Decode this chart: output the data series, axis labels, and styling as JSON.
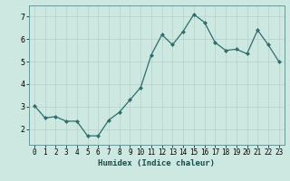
{
  "x": [
    0,
    1,
    2,
    3,
    4,
    5,
    6,
    7,
    8,
    9,
    10,
    11,
    12,
    13,
    14,
    15,
    16,
    17,
    18,
    19,
    20,
    21,
    22,
    23
  ],
  "y": [
    3.05,
    2.5,
    2.55,
    2.35,
    2.35,
    1.7,
    1.7,
    2.4,
    2.75,
    3.3,
    3.85,
    5.3,
    6.2,
    5.75,
    6.35,
    7.1,
    6.75,
    5.85,
    5.5,
    5.55,
    5.35,
    6.4,
    5.75,
    5.0
  ],
  "line_color": "#2e6e6e",
  "marker": "D",
  "marker_size": 2.0,
  "bg_color": "#cce8e0",
  "grid_major_color": "#b8d4cc",
  "grid_minor_color": "#d4e8e4",
  "xlabel": "Humidex (Indice chaleur)",
  "ylabel": "",
  "title": "",
  "xlim": [
    -0.5,
    23.5
  ],
  "ylim": [
    1.3,
    7.5
  ],
  "yticks": [
    2,
    3,
    4,
    5,
    6,
    7
  ],
  "xticks": [
    0,
    1,
    2,
    3,
    4,
    5,
    6,
    7,
    8,
    9,
    10,
    11,
    12,
    13,
    14,
    15,
    16,
    17,
    18,
    19,
    20,
    21,
    22,
    23
  ],
  "tick_fontsize": 5.5,
  "xlabel_fontsize": 6.5
}
